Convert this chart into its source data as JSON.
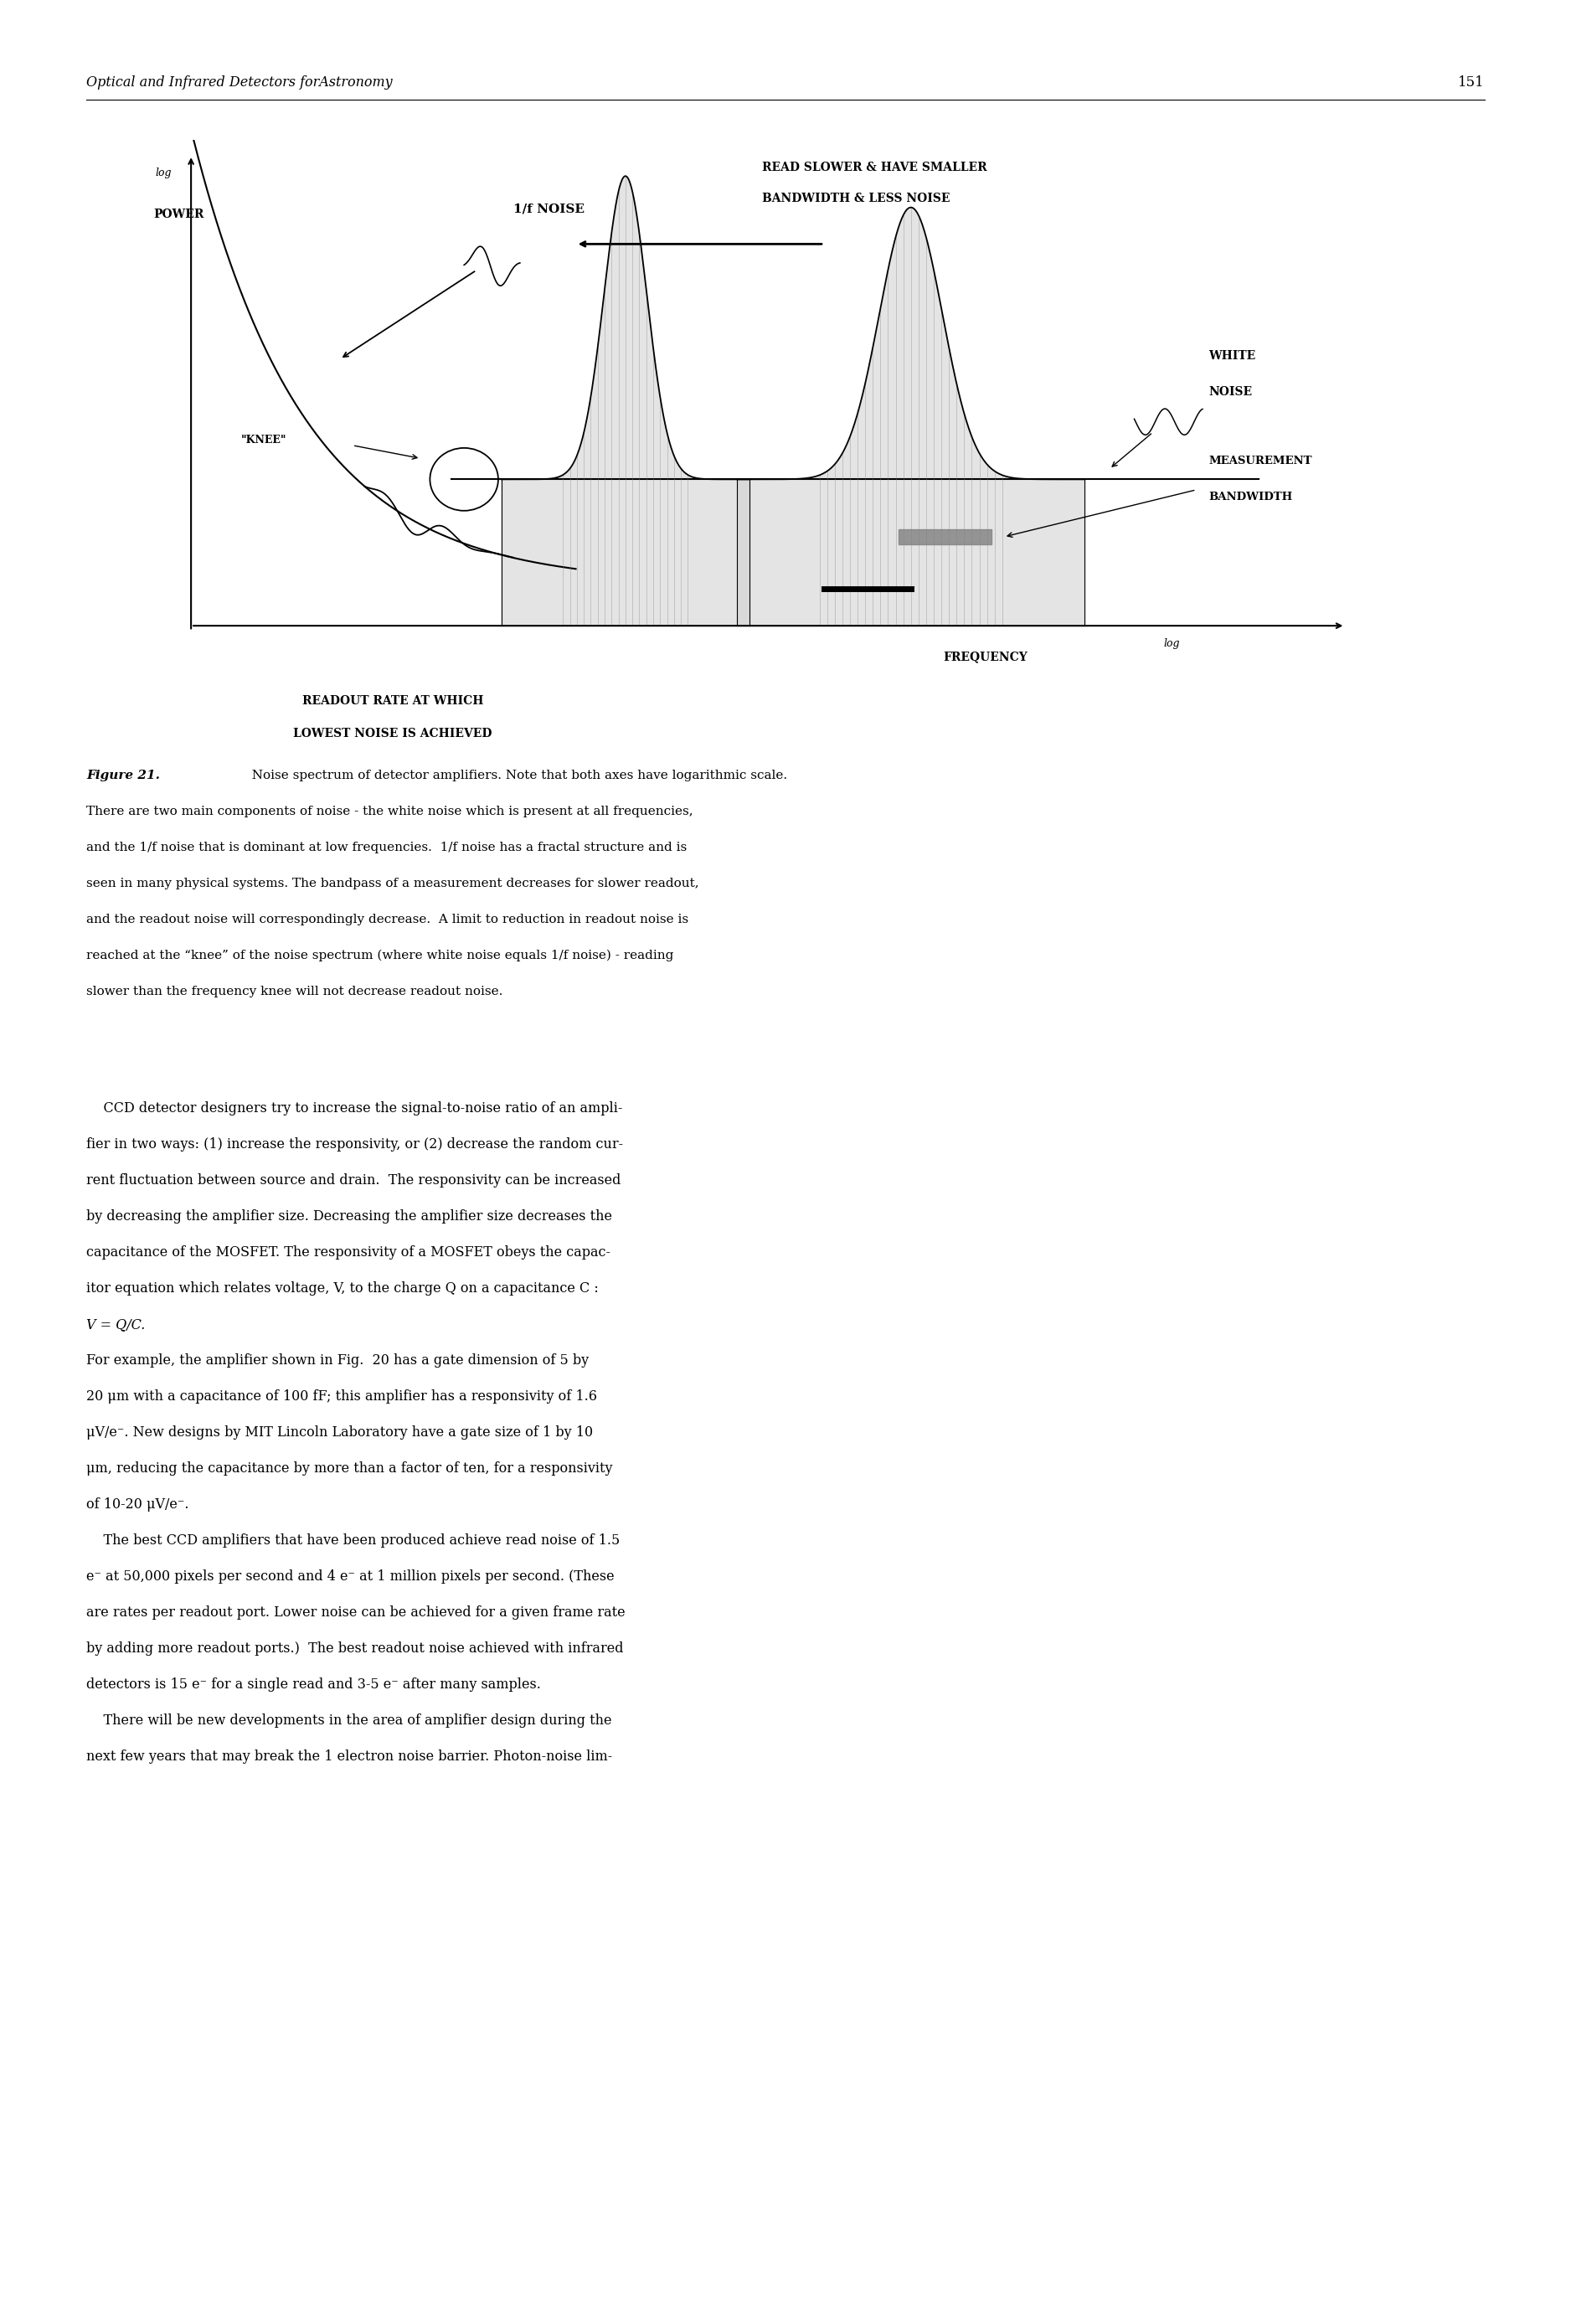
{
  "page_width": 18.76,
  "page_height": 27.75,
  "bg_color": "#ffffff",
  "header_italic": "Optical and Infrared Detectors forAstronomy",
  "header_page": "151",
  "caption_bold": "Figure 21.",
  "caption_lines": [
    "  Noise spectrum of detector amplifiers. Note that both axes have logarithmic scale.",
    "There are two main components of noise - the white noise which is present at all frequencies,",
    "and the 1/f noise that is dominant at low frequencies.  1/f noise has a fractal structure and is",
    "seen in many physical systems. The bandpass of a measurement decreases for slower readout,",
    "and the readout noise will correspondingly decrease.  A limit to reduction in readout noise is",
    "reached at the “knee” of the noise spectrum (where white noise equals 1/f noise) - reading",
    "slower than the frequency knee will not decrease readout noise."
  ],
  "para1_lines": [
    "    CCD detector designers try to increase the signal-to-noise ratio of an ampli-",
    "fier in two ways: (1) increase the responsivity, or (2) decrease the random cur-",
    "rent fluctuation between source and drain.  The responsivity can be increased",
    "by decreasing the amplifier size. Decreasing the amplifier size decreases the",
    "capacitance of the MOSFET. The responsivity of a MOSFET obeys the capac-",
    "itor equation which relates voltage, V, to the charge Q on a capacitance C :"
  ],
  "math_line": "V = Q/C.",
  "para2_lines": [
    "For example, the amplifier shown in Fig.  20 has a gate dimension of 5 by",
    "20 μm with a capacitance of 100 fF; this amplifier has a responsivity of 1.6",
    "μV/e⁻. New designs by MIT Lincoln Laboratory have a gate size of 1 by 10",
    "μm, reducing the capacitance by more than a factor of ten, for a responsivity",
    "of 10-20 μV/e⁻."
  ],
  "para3_lines": [
    "    The best CCD amplifiers that have been produced achieve read noise of 1.5",
    "e⁻ at 50,000 pixels per second and 4 e⁻ at 1 million pixels per second. (These",
    "are rates per readout port. Lower noise can be achieved for a given frame rate",
    "by adding more readout ports.)  The best readout noise achieved with infrared",
    "detectors is 15 e⁻ for a single read and 3-5 e⁻ after many samples."
  ],
  "para4_lines": [
    "    There will be new developments in the area of amplifier design during the",
    "next few years that may break the 1 electron noise barrier. Photon-noise lim-"
  ]
}
